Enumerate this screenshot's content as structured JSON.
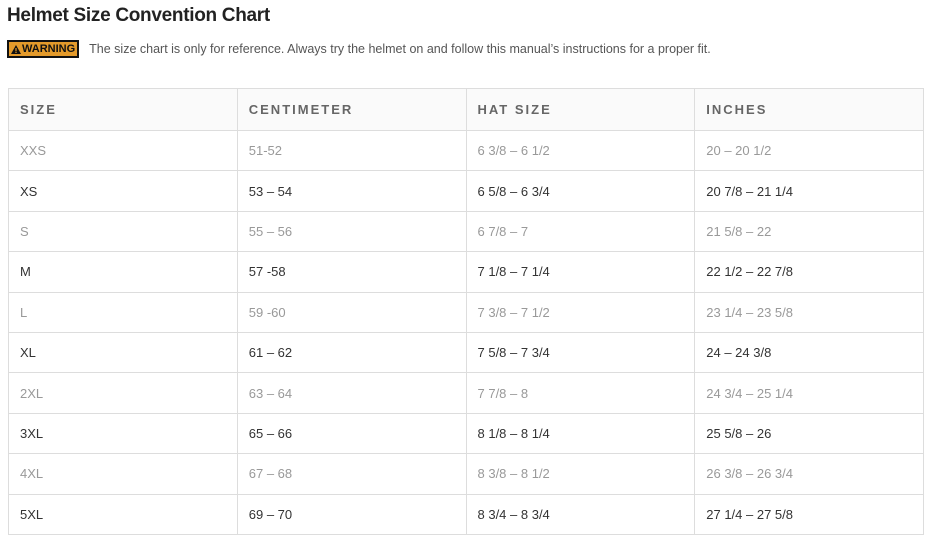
{
  "title": "Helmet Size Convention Chart",
  "warning": {
    "badge": "WARNING",
    "icon": "warning-triangle-icon",
    "color": "#e39a2b",
    "text": "The size chart is only for reference. Always try the helmet on and follow this manual’s instructions for a proper fit."
  },
  "table": {
    "headers": [
      "SIZE",
      "CENTIMETER",
      "HAT SIZE",
      "INCHES"
    ],
    "rows": [
      [
        "XXS",
        "51-52",
        "6 3/8 – 6 1/2",
        "20 – 20 1/2"
      ],
      [
        "XS",
        "53 – 54",
        "6 5/8 – 6 3/4",
        "20 7/8 – 21 1/4"
      ],
      [
        "S",
        "55 – 56",
        "6 7/8 – 7",
        "21 5/8 – 22"
      ],
      [
        "M",
        "57 -58",
        "7 1/8 – 7 1/4",
        "22 1/2 – 22 7/8"
      ],
      [
        "L",
        "59 -60",
        "7 3/8 – 7 1/2",
        "23 1/4 – 23 5/8"
      ],
      [
        "XL",
        "61 – 62",
        "7 5/8 – 7 3/4",
        "24 – 24 3/8"
      ],
      [
        "2XL",
        "63 – 64",
        "7 7/8 – 8",
        "24 3/4 – 25 1/4"
      ],
      [
        "3XL",
        "65 – 66",
        "8 1/8 – 8 1/4",
        "25 5/8 – 26"
      ],
      [
        "4XL",
        "67 – 68",
        "8 3/8 – 8 1/2",
        "26 3/8 – 26 3/4"
      ],
      [
        "5XL",
        "69 – 70",
        "8 3/4 – 8 3/4",
        "27 1/4 – 27 5/8"
      ]
    ]
  }
}
